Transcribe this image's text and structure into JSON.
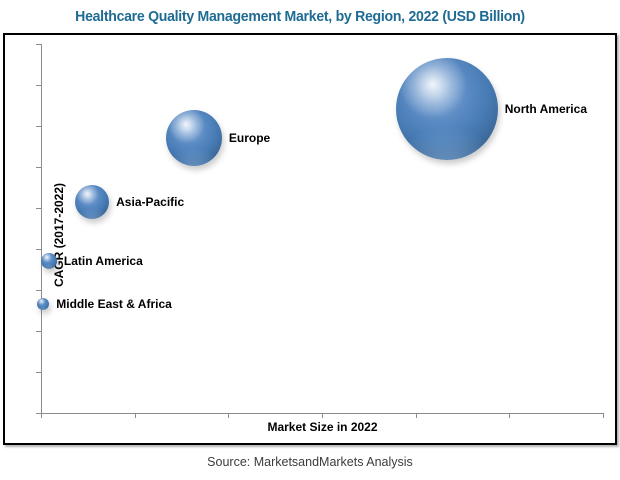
{
  "page": {
    "source": "Source:  MarketsandMarkets Analysis"
  },
  "colors": {
    "title_text": "#1F6B93",
    "bubble_base": "#4F81BD",
    "bubble_highlight": "#D6E4F5",
    "bubble_edge": "#274A70",
    "axis_line": "#8C8C8C",
    "box_border": "#000000",
    "label_text": "#000000",
    "source_text": "#3C3C3C"
  },
  "chart_data": {
    "type": "scatter",
    "subtype": "bubble",
    "title": "Healthcare Quality Management Market, by Region, 2022 (USD Billion)",
    "xlabel": "Market Size in 2022",
    "ylabel": "CAGR (2017-2022)",
    "grid": false,
    "legend": "none",
    "x_axis": {
      "min": 0,
      "max": 100,
      "tick_count": 7,
      "numeric_tick_labels_shown": false,
      "note": "relative scale, axis has unlabeled ticks only"
    },
    "y_axis": {
      "min": 0,
      "max": 100,
      "tick_count": 10,
      "numeric_tick_labels_shown": false,
      "note": "relative scale, axis has unlabeled ticks only"
    },
    "points": [
      {
        "label": "North America",
        "x": 72.2,
        "y": 82.4,
        "radius_px": 51
      },
      {
        "label": "Europe",
        "x": 27.2,
        "y": 74.5,
        "radius_px": 28
      },
      {
        "label": "Asia-Pacific",
        "x": 9.1,
        "y": 57.2,
        "radius_px": 17
      },
      {
        "label": "Latin America",
        "x": 1.4,
        "y": 41.2,
        "radius_px": 8
      },
      {
        "label": "Middle East & Africa",
        "x": 0.4,
        "y": 29.5,
        "radius_px": 6
      }
    ]
  }
}
